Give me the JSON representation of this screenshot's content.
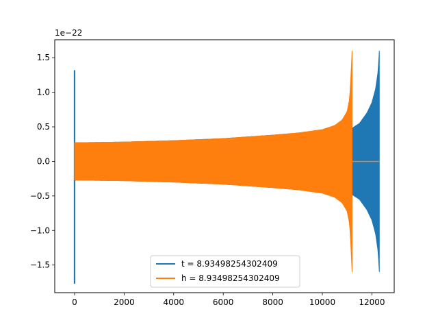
{
  "chart_data": {
    "type": "line",
    "title": "",
    "xlabel": "",
    "ylabel": "",
    "y_offset_label": "1e−22",
    "xlim": [
      -800,
      12900
    ],
    "ylim": [
      -1.9,
      1.76
    ],
    "x_ticks": [
      0,
      2000,
      4000,
      6000,
      8000,
      10000,
      12000
    ],
    "x_tick_labels": [
      "0",
      "2000",
      "4000",
      "6000",
      "8000",
      "10000",
      "12000"
    ],
    "y_ticks": [
      1.5,
      1.0,
      0.5,
      0.0,
      -0.5,
      -1.0,
      -1.5
    ],
    "y_tick_labels": [
      "1.5",
      "1.0",
      "0.5",
      "0.0",
      "−0.5",
      "−1.0",
      "−1.5"
    ],
    "grid": false,
    "legend_position": "bottom-center",
    "series": [
      {
        "name": "t = 8.93498254302409",
        "color": "#1f77b4",
        "initial_spike": {
          "x": 0,
          "min": -1.77,
          "max": 1.32
        },
        "envelope_x": [
          0,
          2000,
          4000,
          6000,
          8000,
          10000,
          11000,
          11200,
          11500,
          11800,
          12000,
          12150,
          12250,
          12300
        ],
        "envelope_amp": [
          0.27,
          0.28,
          0.3,
          0.33,
          0.38,
          0.44,
          0.48,
          0.48,
          0.55,
          0.7,
          0.85,
          1.05,
          1.3,
          1.6
        ]
      },
      {
        "name": "h = 8.93498254302409",
        "color": "#ff7f0e",
        "envelope_x": [
          0,
          2000,
          4000,
          6000,
          8000,
          9000,
          10000,
          10500,
          10800,
          11000,
          11100,
          11150,
          11200
        ],
        "envelope_amp": [
          0.27,
          0.28,
          0.3,
          0.33,
          0.38,
          0.41,
          0.46,
          0.52,
          0.6,
          0.72,
          0.9,
          1.2,
          1.6
        ],
        "tail": {
          "x_start": 11200,
          "x_end": 12300,
          "y": 0.0
        }
      }
    ]
  }
}
